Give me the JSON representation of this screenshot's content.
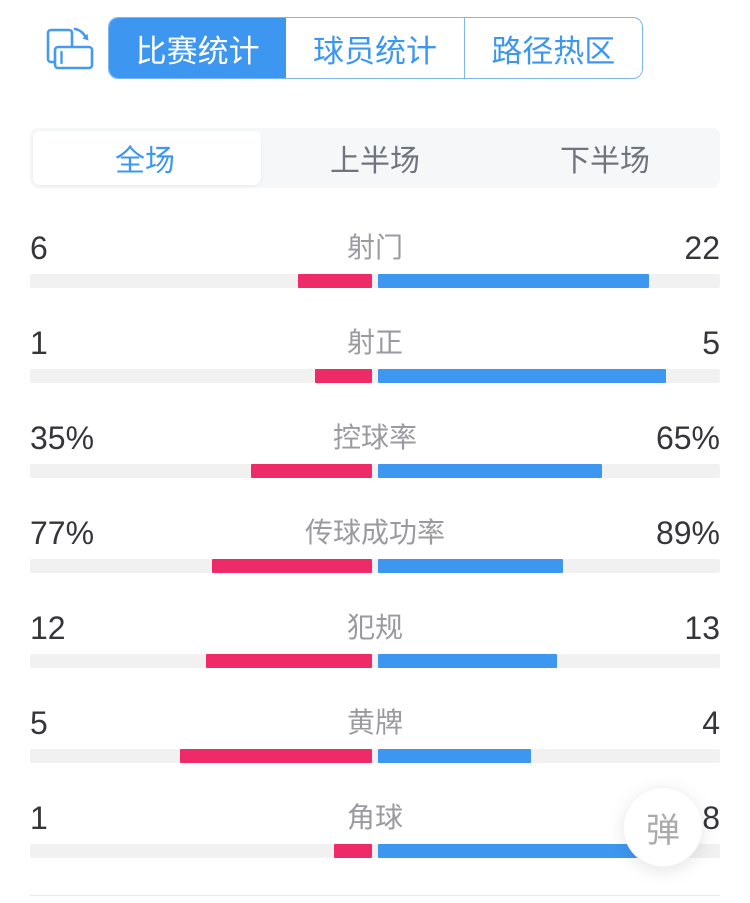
{
  "page": {
    "background": "#FFFFFF",
    "accent_blue": "#3D97F0",
    "accent_pink": "#EF2A68"
  },
  "header": {
    "rotate_icon": "rotate-screen-icon",
    "tabs": [
      {
        "label": "比赛统计",
        "active": true
      },
      {
        "label": "球员统计",
        "active": false
      },
      {
        "label": "路径热区",
        "active": false
      }
    ]
  },
  "period_tabs": [
    {
      "label": "全场",
      "active": true
    },
    {
      "label": "上半场",
      "active": false
    },
    {
      "label": "下半场",
      "active": false
    }
  ],
  "stats": {
    "track_color": "#F1F1F2",
    "left_color": "#EF2A68",
    "right_color": "#3D97F0",
    "rows": [
      {
        "label": "射门",
        "left": "6",
        "right": "22",
        "left_value": 6,
        "right_value": 22
      },
      {
        "label": "射正",
        "left": "1",
        "right": "5",
        "left_value": 1,
        "right_value": 5
      },
      {
        "label": "控球率",
        "left": "35%",
        "right": "65%",
        "left_value": 35,
        "right_value": 65
      },
      {
        "label": "传球成功率",
        "left": "77%",
        "right": "89%",
        "left_value": 77,
        "right_value": 89
      },
      {
        "label": "犯规",
        "left": "12",
        "right": "13",
        "left_value": 12,
        "right_value": 13
      },
      {
        "label": "黄牌",
        "left": "5",
        "right": "4",
        "left_value": 5,
        "right_value": 4
      },
      {
        "label": "角球",
        "left": "1",
        "right": "8",
        "left_value": 1,
        "right_value": 8
      }
    ]
  },
  "floating_button": {
    "label": "弹"
  }
}
